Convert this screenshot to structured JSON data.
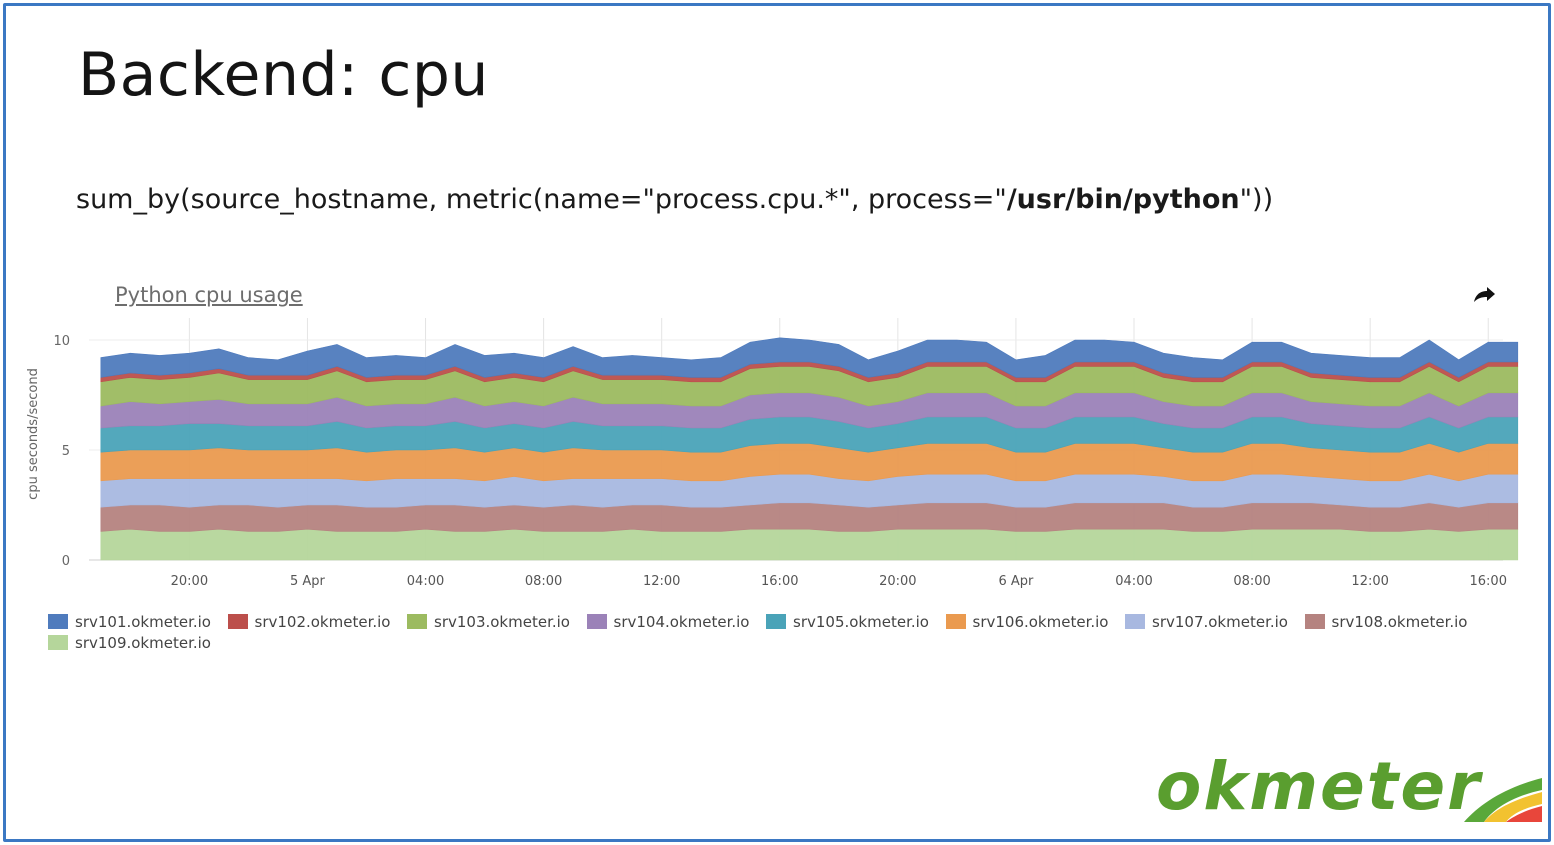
{
  "slide": {
    "title": "Backend: cpu",
    "query_prefix": "sum_by(source_hostname, metric(name=\"process.cpu.*\", process=\"",
    "query_bold": "/usr/bin/python",
    "query_suffix": "\"))"
  },
  "logo": {
    "text": "okmeter"
  },
  "icons": {
    "share": "share-arrow-icon"
  },
  "chart_data": {
    "type": "area",
    "stacked": true,
    "title": "Python cpu usage",
    "ylabel": "cpu seconds/second",
    "xlabel": "",
    "ylim": [
      0,
      11
    ],
    "yticks": [
      0,
      5,
      10
    ],
    "x_tick_labels": [
      "20:00",
      "5 Apr",
      "04:00",
      "08:00",
      "12:00",
      "16:00",
      "20:00",
      "6 Apr",
      "04:00",
      "08:00",
      "12:00",
      "16:00"
    ],
    "x": [
      17,
      18,
      19,
      20,
      21,
      22,
      23,
      24,
      25,
      26,
      27,
      28,
      29,
      30,
      31,
      32,
      33,
      34,
      35,
      36,
      37,
      38,
      39,
      40,
      41,
      42,
      43,
      44,
      45,
      46,
      47,
      48,
      49,
      50,
      51,
      52,
      53,
      54,
      55,
      56,
      57,
      58,
      59,
      60,
      61,
      62,
      63,
      64,
      65
    ],
    "x_unit": "hours since 4 Apr 00:00",
    "x_ticks": [
      20,
      24,
      28,
      32,
      36,
      40,
      44,
      48,
      52,
      56,
      60,
      64
    ],
    "legend_placement": "bottom",
    "grid": true,
    "series": [
      {
        "name": "srv109.okmeter.io",
        "color": "#b5d69b",
        "values": [
          1.3,
          1.4,
          1.3,
          1.3,
          1.4,
          1.3,
          1.3,
          1.4,
          1.3,
          1.3,
          1.3,
          1.4,
          1.3,
          1.3,
          1.4,
          1.3,
          1.3,
          1.3,
          1.4,
          1.3,
          1.3,
          1.3,
          1.4,
          1.4,
          1.4,
          1.3,
          1.3,
          1.4,
          1.4,
          1.4,
          1.4,
          1.3,
          1.3,
          1.4,
          1.4,
          1.4,
          1.4,
          1.3,
          1.3,
          1.4,
          1.4,
          1.4,
          1.4,
          1.3,
          1.3,
          1.4,
          1.3,
          1.4,
          1.4
        ]
      },
      {
        "name": "srv108.okmeter.io",
        "color": "#b58380",
        "values": [
          1.1,
          1.1,
          1.2,
          1.1,
          1.1,
          1.2,
          1.1,
          1.1,
          1.2,
          1.1,
          1.1,
          1.1,
          1.2,
          1.1,
          1.1,
          1.1,
          1.2,
          1.1,
          1.1,
          1.2,
          1.1,
          1.1,
          1.1,
          1.2,
          1.2,
          1.2,
          1.1,
          1.1,
          1.2,
          1.2,
          1.2,
          1.1,
          1.1,
          1.2,
          1.2,
          1.2,
          1.2,
          1.1,
          1.1,
          1.2,
          1.2,
          1.2,
          1.1,
          1.1,
          1.1,
          1.2,
          1.1,
          1.2,
          1.2
        ]
      },
      {
        "name": "srv107.okmeter.io",
        "color": "#a8b8e0",
        "values": [
          1.2,
          1.2,
          1.2,
          1.3,
          1.2,
          1.2,
          1.3,
          1.2,
          1.2,
          1.2,
          1.3,
          1.2,
          1.2,
          1.2,
          1.3,
          1.2,
          1.2,
          1.3,
          1.2,
          1.2,
          1.2,
          1.2,
          1.3,
          1.3,
          1.3,
          1.2,
          1.2,
          1.3,
          1.3,
          1.3,
          1.3,
          1.2,
          1.2,
          1.3,
          1.3,
          1.3,
          1.2,
          1.2,
          1.2,
          1.3,
          1.3,
          1.2,
          1.2,
          1.2,
          1.2,
          1.3,
          1.2,
          1.3,
          1.3
        ]
      },
      {
        "name": "srv106.okmeter.io",
        "color": "#ea9a4f",
        "values": [
          1.3,
          1.3,
          1.3,
          1.3,
          1.4,
          1.3,
          1.3,
          1.3,
          1.4,
          1.3,
          1.3,
          1.3,
          1.4,
          1.3,
          1.3,
          1.3,
          1.4,
          1.3,
          1.3,
          1.3,
          1.3,
          1.3,
          1.4,
          1.4,
          1.4,
          1.4,
          1.3,
          1.3,
          1.4,
          1.4,
          1.4,
          1.3,
          1.3,
          1.4,
          1.4,
          1.4,
          1.3,
          1.3,
          1.3,
          1.4,
          1.4,
          1.3,
          1.3,
          1.3,
          1.3,
          1.4,
          1.3,
          1.4,
          1.4
        ]
      },
      {
        "name": "srv105.okmeter.io",
        "color": "#4aa3b8",
        "values": [
          1.1,
          1.1,
          1.1,
          1.2,
          1.1,
          1.1,
          1.1,
          1.1,
          1.2,
          1.1,
          1.1,
          1.1,
          1.2,
          1.1,
          1.1,
          1.1,
          1.2,
          1.1,
          1.1,
          1.1,
          1.1,
          1.1,
          1.2,
          1.2,
          1.2,
          1.2,
          1.1,
          1.1,
          1.2,
          1.2,
          1.2,
          1.1,
          1.1,
          1.2,
          1.2,
          1.2,
          1.1,
          1.1,
          1.1,
          1.2,
          1.2,
          1.1,
          1.1,
          1.1,
          1.1,
          1.2,
          1.1,
          1.2,
          1.2
        ]
      },
      {
        "name": "srv104.okmeter.io",
        "color": "#9b82b8",
        "values": [
          1.0,
          1.1,
          1.0,
          1.0,
          1.1,
          1.0,
          1.0,
          1.0,
          1.1,
          1.0,
          1.0,
          1.0,
          1.1,
          1.0,
          1.0,
          1.0,
          1.1,
          1.0,
          1.0,
          1.0,
          1.0,
          1.0,
          1.1,
          1.1,
          1.1,
          1.1,
          1.0,
          1.0,
          1.1,
          1.1,
          1.1,
          1.0,
          1.0,
          1.1,
          1.1,
          1.1,
          1.0,
          1.0,
          1.0,
          1.1,
          1.1,
          1.0,
          1.0,
          1.0,
          1.0,
          1.1,
          1.0,
          1.1,
          1.1
        ]
      },
      {
        "name": "srv103.okmeter.io",
        "color": "#9cbb60",
        "values": [
          1.1,
          1.1,
          1.1,
          1.1,
          1.2,
          1.1,
          1.1,
          1.1,
          1.2,
          1.1,
          1.1,
          1.1,
          1.2,
          1.1,
          1.1,
          1.1,
          1.2,
          1.1,
          1.1,
          1.1,
          1.1,
          1.1,
          1.2,
          1.2,
          1.2,
          1.2,
          1.1,
          1.1,
          1.2,
          1.2,
          1.2,
          1.1,
          1.1,
          1.2,
          1.2,
          1.2,
          1.1,
          1.1,
          1.1,
          1.2,
          1.2,
          1.1,
          1.1,
          1.1,
          1.1,
          1.2,
          1.1,
          1.2,
          1.2
        ]
      },
      {
        "name": "srv102.okmeter.io",
        "color": "#bc4f4b",
        "values": [
          0.2,
          0.2,
          0.2,
          0.2,
          0.2,
          0.2,
          0.2,
          0.2,
          0.2,
          0.2,
          0.2,
          0.2,
          0.2,
          0.2,
          0.2,
          0.2,
          0.2,
          0.2,
          0.2,
          0.2,
          0.2,
          0.2,
          0.2,
          0.2,
          0.2,
          0.2,
          0.2,
          0.2,
          0.2,
          0.2,
          0.2,
          0.2,
          0.2,
          0.2,
          0.2,
          0.2,
          0.2,
          0.2,
          0.2,
          0.2,
          0.2,
          0.2,
          0.2,
          0.2,
          0.2,
          0.2,
          0.2,
          0.2,
          0.2
        ]
      },
      {
        "name": "srv101.okmeter.io",
        "color": "#4f7bbd",
        "values": [
          0.9,
          0.9,
          0.9,
          0.9,
          0.9,
          0.8,
          0.7,
          1.1,
          1.0,
          0.9,
          0.9,
          0.8,
          1.0,
          1.0,
          0.9,
          0.9,
          0.9,
          0.8,
          0.9,
          0.8,
          0.8,
          0.9,
          1.0,
          1.1,
          1.0,
          1.0,
          0.8,
          1.0,
          1.0,
          1.0,
          0.9,
          0.8,
          1.0,
          1.0,
          1.0,
          0.9,
          0.9,
          0.9,
          0.8,
          0.9,
          0.9,
          0.9,
          0.9,
          0.9,
          0.9,
          1.0,
          0.8,
          0.9,
          0.9
        ]
      }
    ]
  }
}
